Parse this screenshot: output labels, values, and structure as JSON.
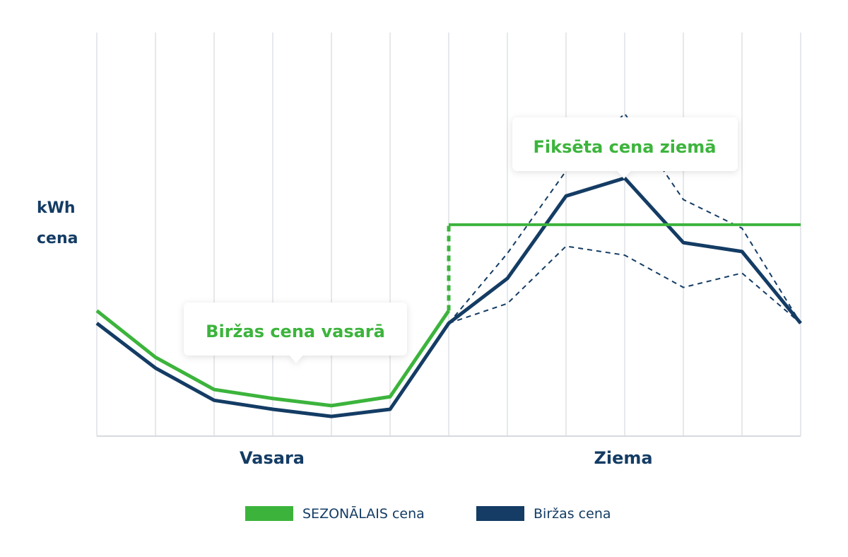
{
  "chart_data": {
    "type": "line",
    "ylabel_lines": [
      "kWh",
      "cena"
    ],
    "period_labels": [
      "Vasara",
      "Ziema"
    ],
    "x": [
      0,
      1,
      2,
      3,
      4,
      5,
      6,
      7,
      8,
      9,
      10,
      11,
      12
    ],
    "ylim": [
      0,
      100
    ],
    "grid": true,
    "legend_position": "bottom",
    "series": [
      {
        "name": "SEZONĀLAIS cena",
        "color": "#3cb43c",
        "style": "solid",
        "values": [
          35,
          22,
          13,
          10.5,
          8.5,
          11,
          35,
          59,
          59,
          59,
          59,
          59,
          59
        ],
        "jump_at_x": 6,
        "jump_from": 35,
        "jump_to": 59
      },
      {
        "name": "Biržas cena",
        "color": "#143c64",
        "style": "solid",
        "values": [
          31.5,
          19,
          10,
          7.5,
          5.5,
          7.5,
          31.5,
          44,
          67,
          72,
          54,
          51.5,
          31.5
        ]
      }
    ],
    "bands": [
      {
        "color": "#143c64",
        "style": "dashed",
        "x": [
          6,
          7,
          8,
          9,
          10,
          11,
          12
        ],
        "upper": [
          31.5,
          51,
          74,
          90,
          66,
          58,
          31.5
        ],
        "lower": [
          31.5,
          37,
          53,
          50.5,
          41.5,
          45.5,
          31.5
        ]
      }
    ],
    "annotations": [
      {
        "text": "Biržas cena vasarā",
        "color": "#3cb43c"
      },
      {
        "text": "Fiksēta cena ziemā",
        "color": "#3cb43c"
      }
    ]
  }
}
